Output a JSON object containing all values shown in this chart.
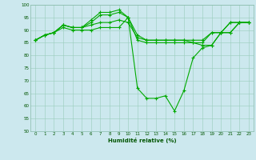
{
  "xlabel": "Humidité relative (%)",
  "bg_color": "#cce8ee",
  "grid_color": "#99ccbb",
  "line_color": "#00aa00",
  "xlim": [
    -0.5,
    23.5
  ],
  "ylim": [
    50,
    100
  ],
  "yticks": [
    50,
    55,
    60,
    65,
    70,
    75,
    80,
    85,
    90,
    95,
    100
  ],
  "xticks": [
    0,
    1,
    2,
    3,
    4,
    5,
    6,
    7,
    8,
    9,
    10,
    11,
    12,
    13,
    14,
    15,
    16,
    17,
    18,
    19,
    20,
    21,
    22,
    23
  ],
  "series": [
    [
      86,
      88,
      89,
      91,
      90,
      90,
      90,
      91,
      91,
      91,
      95,
      86,
      85,
      85,
      85,
      85,
      85,
      85,
      85,
      89,
      89,
      93,
      93,
      93
    ],
    [
      86,
      88,
      89,
      92,
      91,
      91,
      92,
      93,
      93,
      94,
      93,
      87,
      86,
      86,
      86,
      86,
      86,
      86,
      86,
      89,
      89,
      93,
      93,
      93
    ],
    [
      86,
      88,
      89,
      92,
      91,
      91,
      93,
      96,
      96,
      97,
      95,
      88,
      86,
      86,
      86,
      86,
      86,
      85,
      84,
      84,
      89,
      89,
      93,
      93
    ],
    [
      86,
      88,
      89,
      92,
      91,
      91,
      94,
      97,
      97,
      98,
      95,
      67,
      63,
      63,
      64,
      58,
      66,
      79,
      83,
      84,
      89,
      89,
      93,
      93
    ]
  ]
}
